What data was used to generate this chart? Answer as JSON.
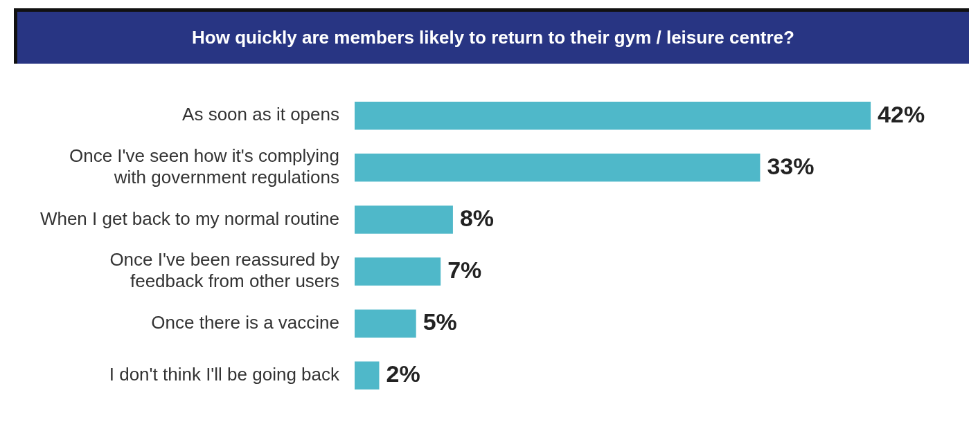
{
  "chart_data": {
    "type": "bar",
    "orientation": "horizontal",
    "title": "How quickly are members likely to return to their gym / leisure centre?",
    "categories": [
      "As soon as it opens",
      "Once I've seen how it's complying\nwith government regulations",
      "When I get back to my normal routine",
      "Once I've been reassured by\nfeedback from other users",
      "Once there is a vaccine",
      "I don't think I'll be going back"
    ],
    "values": [
      42,
      33,
      8,
      7,
      5,
      2
    ],
    "value_labels": [
      "42%",
      "33%",
      "8%",
      "7%",
      "5%",
      "2%"
    ],
    "color": "#4fb8c9",
    "legend": false
  }
}
